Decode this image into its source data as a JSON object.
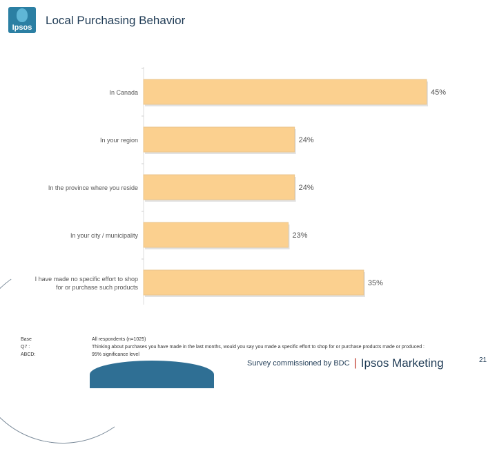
{
  "header": {
    "logo_text": "Ipsos",
    "title": "Local Purchasing Behavior"
  },
  "chart_data": {
    "type": "bar",
    "orientation": "horizontal",
    "categories": [
      "In Canada",
      "In your region",
      "In the province where you reside",
      "In your city / municipality",
      "I have made no specific effort to shop for or purchase such products"
    ],
    "category_lines": [
      [
        "In Canada"
      ],
      [
        "In your region"
      ],
      [
        "In the province where you reside"
      ],
      [
        "In your city / municipality"
      ],
      [
        "I have made no specific effort to shop",
        "for or purchase such products"
      ]
    ],
    "values": [
      45,
      24,
      24,
      23,
      35
    ],
    "value_labels": [
      "45%",
      "24%",
      "24%",
      "23%",
      "35%"
    ],
    "xlim": [
      0,
      45
    ],
    "bar_color": "#fbd08f",
    "bar_edge_color": "#e9c58e",
    "grid": false
  },
  "footer": {
    "labels": [
      "Base",
      "Q7 :",
      "ABCD:"
    ],
    "values": [
      "All respondents (n=1025)",
      "Thinking about purchases you have made in the last months, would you say you made a specific effort to shop for or purchase products made or produced :",
      "95% significance level"
    ],
    "credit": "Survey commissioned by BDC",
    "separator": "|",
    "brand": "Ipsos Marketing",
    "page_number": "21"
  }
}
